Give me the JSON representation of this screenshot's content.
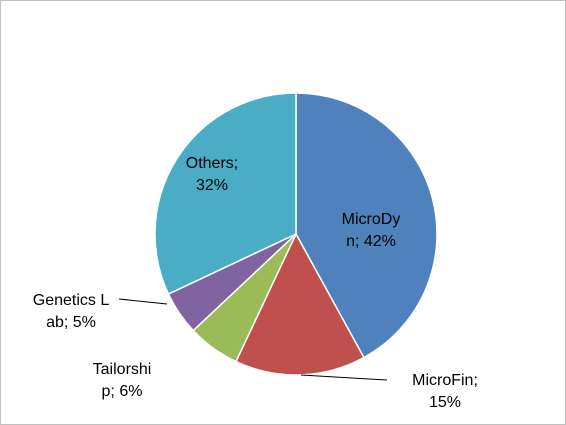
{
  "chart_data": {
    "type": "pie",
    "values": [
      42,
      15,
      6,
      5,
      32
    ],
    "value_labels": [
      "MicroDyn; 42%",
      "MicroFin; 15%",
      "Tailorship; 6%",
      "Genetics Lab; 5%",
      "Others; 32%"
    ],
    "colors": [
      "#4f81bd",
      "#c0504d",
      "#9bbb59",
      "#8064a2",
      "#4bacc6"
    ]
  }
}
